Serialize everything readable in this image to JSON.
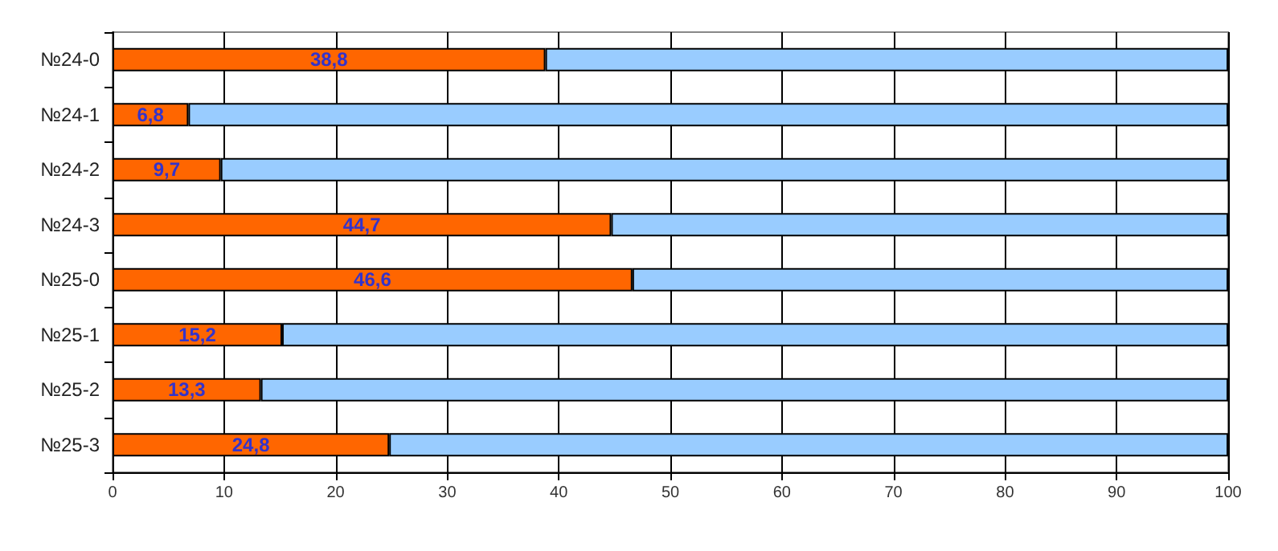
{
  "chart_data": {
    "type": "bar",
    "orientation": "horizontal",
    "stacked": true,
    "categories": [
      "№24-0",
      "№24-1",
      "№24-2",
      "№24-3",
      "№25-0",
      "№25-1",
      "№25-2",
      "№25-3"
    ],
    "series": [
      {
        "color": "#ff6600",
        "values": [
          38.8,
          6.8,
          9.7,
          44.7,
          46.6,
          15.2,
          13.3,
          24.8
        ],
        "value_labels": [
          "38,8",
          "6,8",
          "9,7",
          "44,7",
          "46,6",
          "15,2",
          "13,3",
          "24,8"
        ]
      },
      {
        "color": "#99ccff",
        "values": [
          61.2,
          93.2,
          90.3,
          55.3,
          53.4,
          84.8,
          86.7,
          75.2
        ]
      }
    ],
    "xlim": [
      0,
      100
    ],
    "xticks": [
      0,
      10,
      20,
      30,
      40,
      50,
      60,
      70,
      80,
      90,
      100
    ],
    "grid": "x"
  }
}
